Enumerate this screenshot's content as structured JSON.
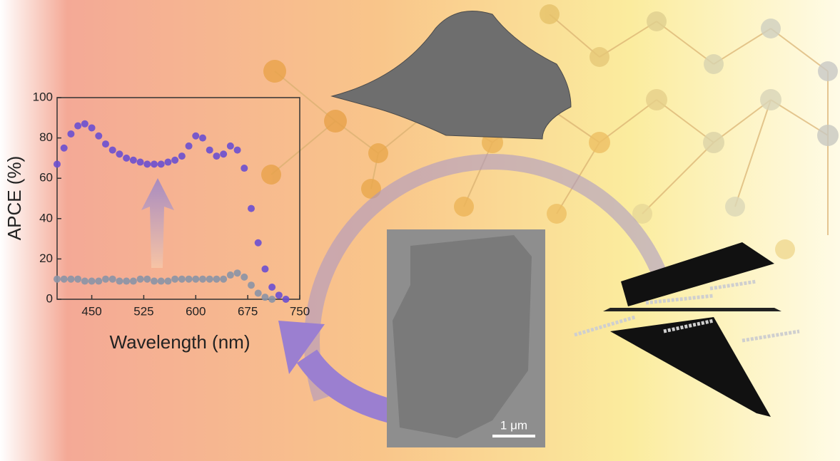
{
  "chart_data": {
    "type": "scatter",
    "x_label": "Wavelength (nm)",
    "y_label": "APCE (%)",
    "x": [
      400,
      410,
      420,
      430,
      440,
      450,
      460,
      470,
      480,
      490,
      500,
      510,
      520,
      530,
      540,
      550,
      560,
      570,
      580,
      590,
      600,
      610,
      620,
      630,
      640,
      650,
      660,
      670,
      680,
      690,
      700,
      710,
      720,
      730
    ],
    "series": [
      {
        "color": "#6a4fd0",
        "values": [
          67,
          75,
          82,
          86,
          87,
          85,
          81,
          77,
          74,
          72,
          70,
          69,
          68,
          67,
          67,
          67,
          68,
          69,
          71,
          76,
          81,
          80,
          74,
          71,
          72,
          76,
          74,
          65,
          45,
          28,
          15,
          6,
          2,
          0
        ]
      },
      {
        "color": "#8a93a6",
        "values": [
          10,
          10,
          10,
          10,
          9,
          9,
          9,
          10,
          10,
          9,
          9,
          9,
          10,
          10,
          9,
          9,
          9,
          10,
          10,
          10,
          10,
          10,
          10,
          10,
          10,
          12,
          13,
          11,
          7,
          3,
          1,
          0,
          null,
          null
        ]
      }
    ],
    "xlim": [
      400,
      750
    ],
    "ylim": [
      0,
      100
    ],
    "xticks": [
      450,
      525,
      600,
      675,
      750
    ],
    "yticks": [
      0,
      20,
      40,
      60,
      80,
      100
    ]
  },
  "scale_bar": {
    "label": "1 μm"
  }
}
